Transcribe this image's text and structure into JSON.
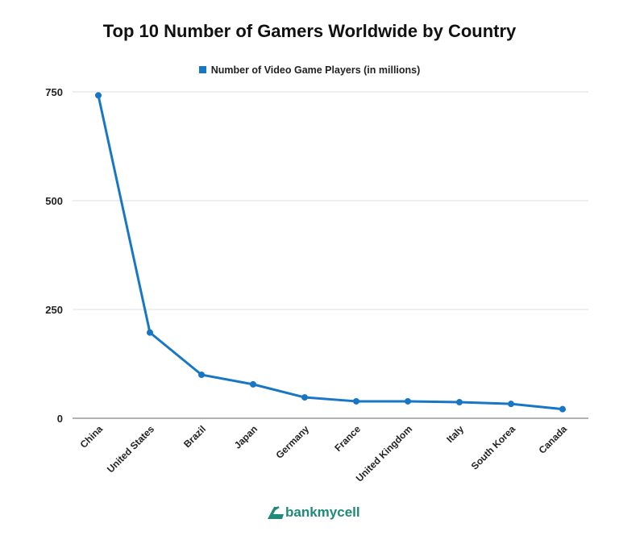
{
  "chart_data": {
    "type": "line",
    "title": "Top 10 Number of Gamers Worldwide by Country",
    "xlabel": "",
    "ylabel": "",
    "categories": [
      "China",
      "United States",
      "Brazil",
      "Japan",
      "Germany",
      "France",
      "United Kingdom",
      "Italy",
      "South Korea",
      "Canada"
    ],
    "series": [
      {
        "name": "Number of Video Game Players (in millions)",
        "values": [
          742,
          197,
          100,
          78,
          48,
          39,
          39,
          37,
          33,
          21
        ],
        "color": "#1877c5"
      }
    ],
    "ylim": [
      0,
      750
    ],
    "yticks": [
      0,
      250,
      500,
      750
    ],
    "grid": true,
    "legend_position": "top"
  },
  "branding": {
    "logo_text": "bankmycell",
    "color": "#1e8a7a"
  }
}
